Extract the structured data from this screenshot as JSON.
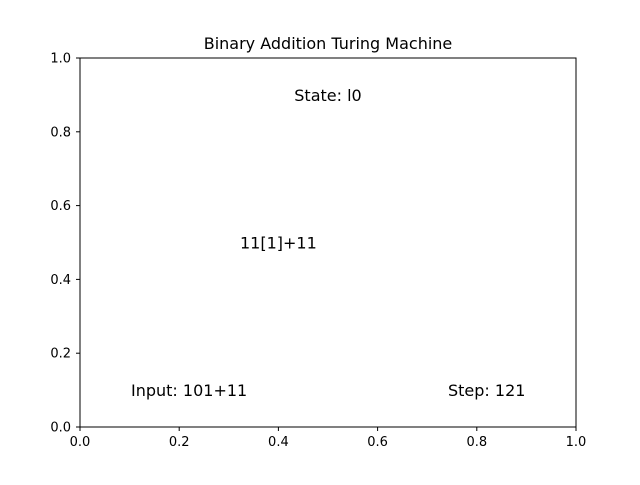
{
  "chart_data": {
    "type": "scatter",
    "title": "Binary Addition Turing Machine",
    "xlabel": "",
    "ylabel": "",
    "xlim": [
      0.0,
      1.0
    ],
    "ylim": [
      0.0,
      1.0
    ],
    "xticks": [
      {
        "value": 0.0,
        "label": "0.0"
      },
      {
        "value": 0.2,
        "label": "0.2"
      },
      {
        "value": 0.4,
        "label": "0.4"
      },
      {
        "value": 0.6,
        "label": "0.6"
      },
      {
        "value": 0.8,
        "label": "0.8"
      },
      {
        "value": 1.0,
        "label": "1.0"
      }
    ],
    "yticks": [
      {
        "value": 0.0,
        "label": "0.0"
      },
      {
        "value": 0.2,
        "label": "0.2"
      },
      {
        "value": 0.4,
        "label": "0.4"
      },
      {
        "value": 0.6,
        "label": "0.6"
      },
      {
        "value": 0.8,
        "label": "0.8"
      },
      {
        "value": 1.0,
        "label": "1.0"
      }
    ],
    "grid": false,
    "annotations": [
      {
        "name": "state-annotation",
        "text": "State: l0",
        "x": 0.5,
        "y": 0.9
      },
      {
        "name": "tape-annotation",
        "text": "11[1]+11",
        "x": 0.4,
        "y": 0.5
      },
      {
        "name": "input-annotation",
        "text": "Input: 101+11",
        "x": 0.22,
        "y": 0.1
      },
      {
        "name": "step-annotation",
        "text": "Step: 121",
        "x": 0.82,
        "y": 0.1
      }
    ]
  }
}
